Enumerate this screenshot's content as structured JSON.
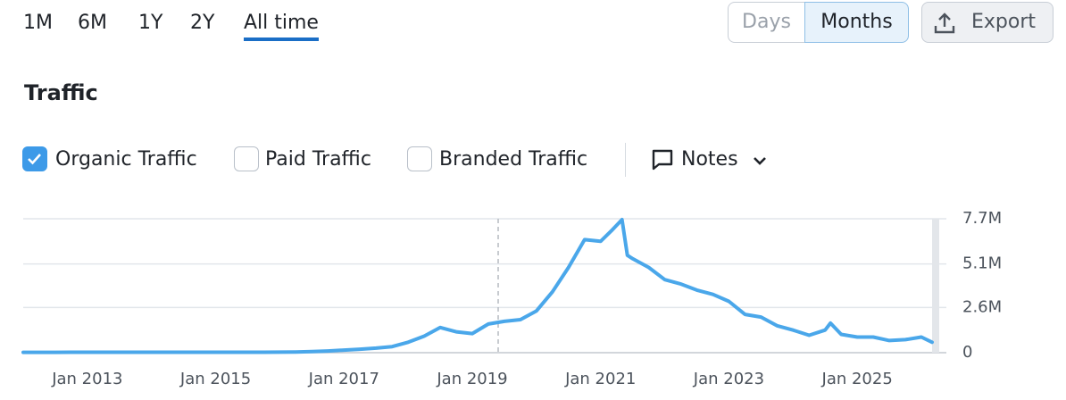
{
  "range_tabs": [
    "1M",
    "6M",
    "1Y",
    "2Y",
    "All time"
  ],
  "granularity": [
    "Days",
    "Months"
  ],
  "export": "Export",
  "section_title": "Traffic",
  "other_metrics": [
    "Paid Traffic",
    "Branded Traffic"
  ],
  "notes": "Notes",
  "chart_data": {
    "type": "line",
    "x": [
      "2012-01",
      "2012-04",
      "2012-07",
      "2012-10",
      "2013-01",
      "2013-04",
      "2013-07",
      "2013-10",
      "2014-01",
      "2014-04",
      "2014-07",
      "2014-10",
      "2015-01",
      "2015-04",
      "2015-07",
      "2015-10",
      "2016-01",
      "2016-04",
      "2016-07",
      "2016-10",
      "2017-01",
      "2017-04",
      "2017-07",
      "2017-10",
      "2018-01",
      "2018-04",
      "2018-07",
      "2018-10",
      "2019-01",
      "2019-04",
      "2019-07",
      "2019-10",
      "2020-01",
      "2020-04",
      "2020-07",
      "2020-10",
      "2021-01",
      "2021-03",
      "2021-05",
      "2021-06",
      "2021-07",
      "2021-10",
      "2022-01",
      "2022-04",
      "2022-07",
      "2022-10",
      "2023-01",
      "2023-04",
      "2023-07",
      "2023-10",
      "2024-01",
      "2024-04",
      "2024-07",
      "2024-08",
      "2024-10",
      "2025-01",
      "2025-04",
      "2025-07",
      "2025-10",
      "2026-01",
      "2026-03"
    ],
    "series": [
      {
        "name": "Organic Traffic",
        "color": "#4aa7ea",
        "values": [
          20000,
          20000,
          20000,
          25000,
          25000,
          25000,
          25000,
          25000,
          25000,
          25000,
          25000,
          25000,
          25000,
          25000,
          25000,
          25000,
          30000,
          40000,
          60000,
          100000,
          150000,
          200000,
          260000,
          350000,
          600000,
          950000,
          1450000,
          1200000,
          1100000,
          1650000,
          1800000,
          1900000,
          2400000,
          3500000,
          4900000,
          6500000,
          6400000,
          7000000,
          7650000,
          5600000,
          5400000,
          4900000,
          4200000,
          3950000,
          3600000,
          3350000,
          2950000,
          2200000,
          2050000,
          1550000,
          1300000,
          1000000,
          1300000,
          1700000,
          1050000,
          900000,
          900000,
          700000,
          750000,
          900000,
          600000
        ]
      }
    ],
    "xlim": [
      "2012-01",
      "2026-03"
    ],
    "xticks": [
      {
        "value": "2013-01",
        "label": "Jan 2013"
      },
      {
        "value": "2015-01",
        "label": "Jan 2015"
      },
      {
        "value": "2017-01",
        "label": "Jan 2017"
      },
      {
        "value": "2019-01",
        "label": "Jan 2019"
      },
      {
        "value": "2021-01",
        "label": "Jan 2021"
      },
      {
        "value": "2023-01",
        "label": "Jan 2023"
      },
      {
        "value": "2025-01",
        "label": "Jan 2025"
      }
    ],
    "ylim": [
      0,
      7700000
    ],
    "yticks": [
      0,
      {
        "value": 2600000,
        "label": "2.6M"
      },
      {
        "value": 5100000,
        "label": "5.1M"
      },
      {
        "value": 7700000,
        "label": "7.7M"
      }
    ],
    "grid": true
  }
}
